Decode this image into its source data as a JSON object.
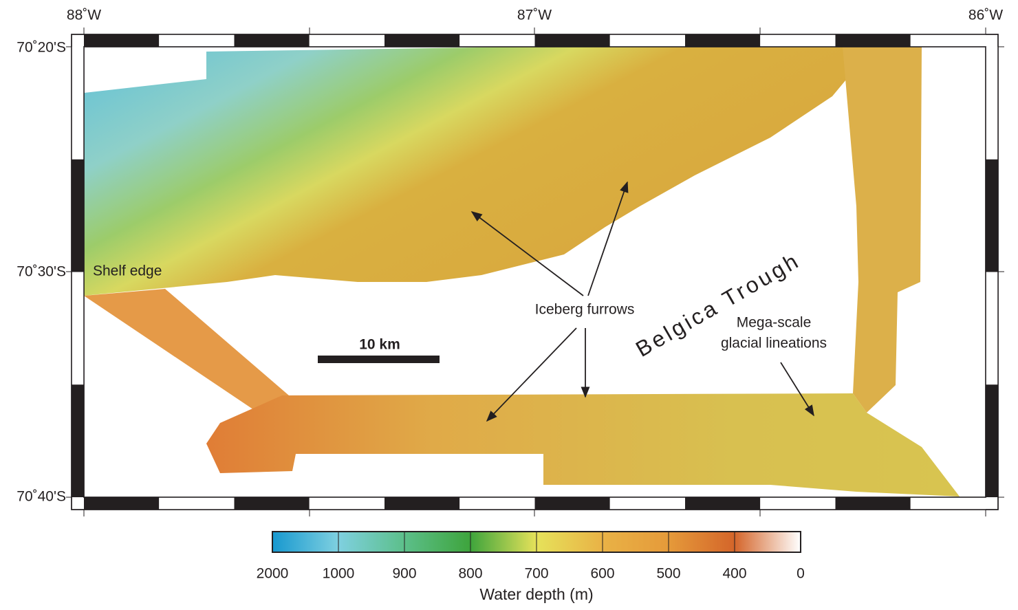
{
  "map": {
    "lon_labels": [
      "88˚W",
      "87˚W",
      "86˚W"
    ],
    "lat_labels": [
      "70˚20'S",
      "70˚30'S",
      "70˚40'S"
    ],
    "annotations": {
      "shelf_edge": "Shelf edge",
      "iceberg_furrows": "Iceberg furrows",
      "belgica_trough": "Belgica Trough",
      "msgl_line1": "Mega-scale",
      "msgl_line2": "glacial lineations"
    },
    "scale_bar": "10 km",
    "colorbar": {
      "ticks": [
        2000,
        1000,
        900,
        800,
        700,
        600,
        500,
        400,
        0
      ],
      "label": "Water depth (m)"
    }
  }
}
